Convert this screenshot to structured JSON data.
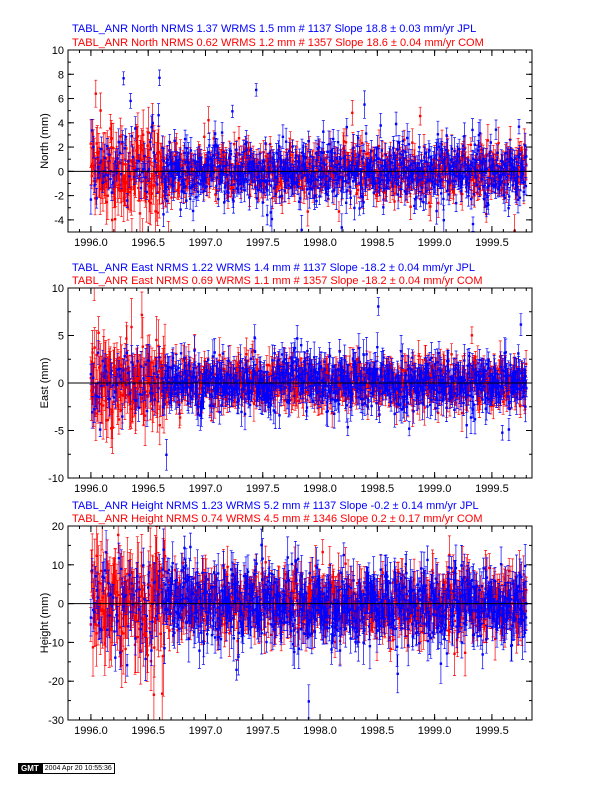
{
  "panels": [
    {
      "id": "north",
      "title_jpl": "TABL_ANR North NRMS 1.37 WRMS  1.5 mm # 1137 Slope  18.8 ±  0.03 mm/yr JPL",
      "title_com": "TABL_ANR North NRMS 0.62 WRMS  1.2 mm # 1357 Slope  18.6 ±  0.04 mm/yr COM",
      "ylabel": "North (mm)",
      "ylim": [
        -5,
        10
      ],
      "yticks": [
        -4,
        -2,
        0,
        2,
        4,
        6,
        8,
        10
      ],
      "amp_red_early": 1.8,
      "amp_red": 1.0,
      "amp_blue": 1.3,
      "err_red_early": 1.6,
      "err_red": 0.9,
      "err_blue": 0.8
    },
    {
      "id": "east",
      "title_jpl": "TABL_ANR East NRMS 1.22 WRMS  1.4 mm # 1137 Slope  -18.2 ±  0.04 mm/yr JPL",
      "title_com": "TABL_ANR East NRMS 0.69 WRMS  1.1 mm # 1357 Slope  -18.2 ±  0.04 mm/yr COM",
      "ylabel": "East (mm)",
      "ylim": [
        -10,
        10
      ],
      "yticks": [
        -10,
        -5,
        0,
        5,
        10
      ],
      "amp_red_early": 2.0,
      "amp_red": 1.1,
      "amp_blue": 1.4,
      "err_red_early": 2.4,
      "err_red": 1.3,
      "err_blue": 1.2
    },
    {
      "id": "height",
      "title_jpl": "TABL_ANR Height NRMS 1.23 WRMS  5.2 mm # 1137 Slope  -0.2 ±  0.14 mm/yr JPL",
      "title_com": "TABL_ANR Height NRMS 0.74 WRMS  4.5 mm # 1346 Slope   0.2 ±  0.17 mm/yr COM",
      "ylabel": "Height (mm)",
      "ylim": [
        -30,
        20
      ],
      "yticks": [
        -30,
        -20,
        -10,
        0,
        10,
        20
      ],
      "amp_red_early": 7.0,
      "amp_red": 4.0,
      "amp_blue": 5.0,
      "err_red_early": 7.0,
      "err_red": 4.0,
      "err_blue": 4.0
    }
  ],
  "chart_data": {
    "type": "scatter",
    "xlim": [
      1995.8,
      1999.85
    ],
    "xticks": [
      1996.0,
      1996.5,
      1997.0,
      1997.5,
      1998.0,
      1998.5,
      1999.0,
      1999.5
    ],
    "series": [
      {
        "name": "JPL",
        "color": "#0000ff",
        "x_start": 1996.0,
        "x_end": 1999.8,
        "count": 1137
      },
      {
        "name": "COM",
        "color": "#ff0000",
        "x_start": 1996.0,
        "x_end": 1999.8,
        "count": 1357
      }
    ],
    "early_red_end": 1996.65,
    "zero_line": true
  },
  "footer": {
    "logo": "GMT",
    "timestamp": "2004 Apr 20 10:55:36"
  }
}
